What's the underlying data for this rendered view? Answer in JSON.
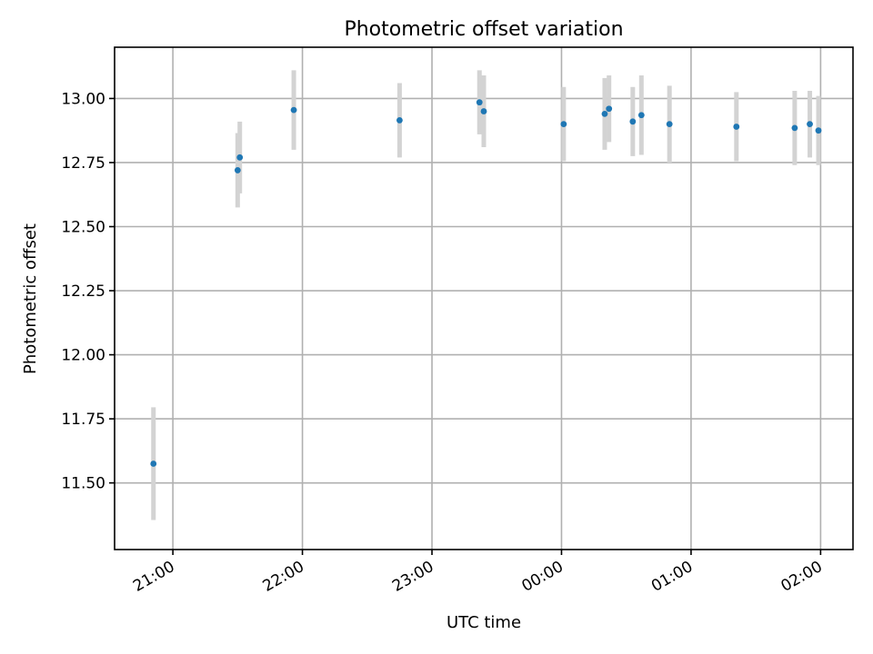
{
  "chart_data": {
    "type": "scatter",
    "title": "Photometric offset variation",
    "xlabel": "UTC time",
    "ylabel": "Photometric offset",
    "xlim": [
      "20:33",
      "26:15"
    ],
    "ylim": [
      11.24,
      13.2
    ],
    "grid": true,
    "colors": {
      "point": "#1f77b4",
      "error_bar": "#d3d3d3"
    },
    "x_ticks": [
      {
        "label": "21:00",
        "t": "21:00"
      },
      {
        "label": "22:00",
        "t": "22:00"
      },
      {
        "label": "23:00",
        "t": "23:00"
      },
      {
        "label": "00:00",
        "t": "24:00"
      },
      {
        "label": "01:00",
        "t": "25:00"
      },
      {
        "label": "02:00",
        "t": "26:00"
      }
    ],
    "y_ticks": [
      "11.50",
      "11.75",
      "12.00",
      "12.25",
      "12.50",
      "12.75",
      "13.00"
    ],
    "points": [
      {
        "t": "20:51",
        "y": 11.575,
        "err": 0.22
      },
      {
        "t": "21:30",
        "y": 12.72,
        "err": 0.145
      },
      {
        "t": "21:31",
        "y": 12.77,
        "err": 0.14
      },
      {
        "t": "21:56",
        "y": 12.955,
        "err": 0.155
      },
      {
        "t": "22:45",
        "y": 12.915,
        "err": 0.145
      },
      {
        "t": "23:22",
        "y": 12.985,
        "err": 0.125
      },
      {
        "t": "23:24",
        "y": 12.95,
        "err": 0.14
      },
      {
        "t": "24:01",
        "y": 12.9,
        "err": 0.145
      },
      {
        "t": "24:20",
        "y": 12.94,
        "err": 0.14
      },
      {
        "t": "24:22",
        "y": 12.96,
        "err": 0.13
      },
      {
        "t": "24:33",
        "y": 12.91,
        "err": 0.135
      },
      {
        "t": "24:37",
        "y": 12.935,
        "err": 0.155
      },
      {
        "t": "24:50",
        "y": 12.9,
        "err": 0.15
      },
      {
        "t": "25:21",
        "y": 12.89,
        "err": 0.135
      },
      {
        "t": "25:48",
        "y": 12.885,
        "err": 0.145
      },
      {
        "t": "25:55",
        "y": 12.9,
        "err": 0.13
      },
      {
        "t": "25:59",
        "y": 12.875,
        "err": 0.135
      }
    ]
  }
}
